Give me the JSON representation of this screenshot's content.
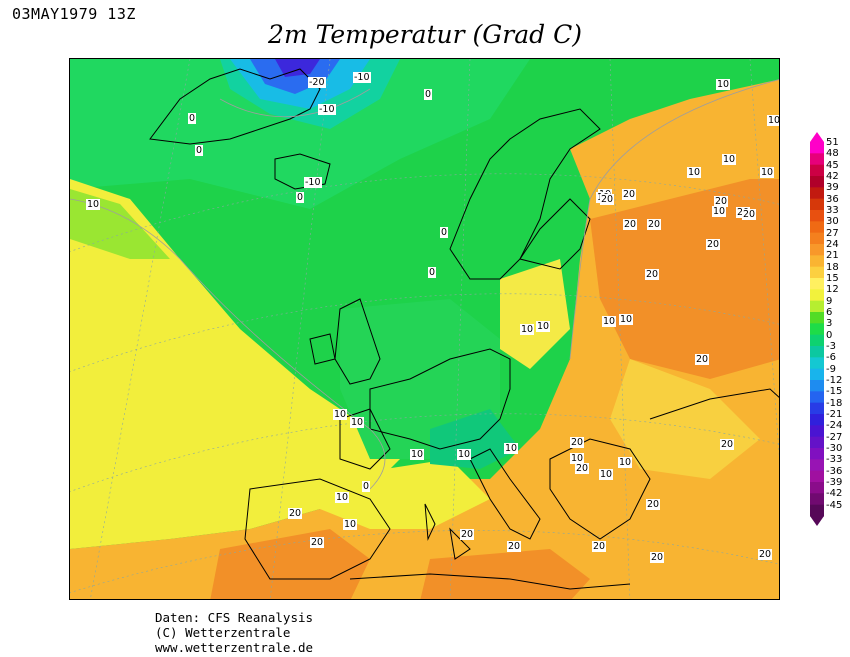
{
  "header": {
    "date": "03MAY1979 13Z",
    "title": "2m Temperatur (Grad C)"
  },
  "credits": {
    "line1": "Daten: CFS Reanalysis",
    "line2": "(C) Wetterzentrale",
    "line3": "www.wetterzentrale.de"
  },
  "legend": {
    "labels": [
      "51",
      "48",
      "45",
      "42",
      "39",
      "36",
      "33",
      "30",
      "27",
      "24",
      "21",
      "18",
      "15",
      "12",
      "9",
      "6",
      "3",
      "0",
      "-3",
      "-6",
      "-9",
      "-12",
      "-15",
      "-18",
      "-21",
      "-24",
      "-27",
      "-30",
      "-33",
      "-36",
      "-39",
      "-42",
      "-45"
    ],
    "colors": [
      "#ff00c8",
      "#e6007a",
      "#cc0044",
      "#b0002a",
      "#c21a10",
      "#d6380a",
      "#e85010",
      "#f06a14",
      "#f4801e",
      "#f8982a",
      "#fab432",
      "#fcd040",
      "#fff060",
      "#f2f23c",
      "#b6ee30",
      "#52dc26",
      "#1edc48",
      "#0ed270",
      "#0cc8a0",
      "#14c8d2",
      "#18b4ec",
      "#1e8cf0",
      "#2464f0",
      "#283ce6",
      "#3020dc",
      "#4a14d2",
      "#6412c8",
      "#8010c0",
      "#9814b4",
      "#a010a0",
      "#8a0c8a",
      "#700a70",
      "#560858"
    ]
  },
  "contour_labels": [
    {
      "text": "-20"
    },
    {
      "text": "-10"
    },
    {
      "text": "-10"
    },
    {
      "text": "0"
    },
    {
      "text": "0"
    },
    {
      "text": "0"
    },
    {
      "text": "-10"
    },
    {
      "text": "0"
    },
    {
      "text": "10"
    },
    {
      "text": "0"
    },
    {
      "text": "0"
    },
    {
      "text": "10"
    },
    {
      "text": "10"
    },
    {
      "text": "10"
    },
    {
      "text": "10"
    },
    {
      "text": "10"
    },
    {
      "text": "10"
    },
    {
      "text": "10"
    },
    {
      "text": "20"
    },
    {
      "text": "20"
    },
    {
      "text": "20"
    },
    {
      "text": "10"
    },
    {
      "text": "20"
    },
    {
      "text": "20"
    },
    {
      "text": "20"
    },
    {
      "text": "20"
    },
    {
      "text": "20"
    },
    {
      "text": "20"
    },
    {
      "text": "10"
    },
    {
      "text": "10"
    },
    {
      "text": "10"
    },
    {
      "text": "10"
    },
    {
      "text": "10"
    },
    {
      "text": "10"
    },
    {
      "text": "10"
    },
    {
      "text": "0"
    },
    {
      "text": "10"
    },
    {
      "text": "10"
    },
    {
      "text": "20"
    },
    {
      "text": "20"
    },
    {
      "text": "20"
    },
    {
      "text": "20"
    },
    {
      "text": "20"
    },
    {
      "text": "20"
    },
    {
      "text": "20"
    },
    {
      "text": "20"
    },
    {
      "text": "10"
    },
    {
      "text": "10"
    },
    {
      "text": "10"
    },
    {
      "text": "10"
    },
    {
      "text": "10"
    },
    {
      "text": "20"
    },
    {
      "text": "20"
    },
    {
      "text": "20"
    },
    {
      "text": "20"
    }
  ]
}
